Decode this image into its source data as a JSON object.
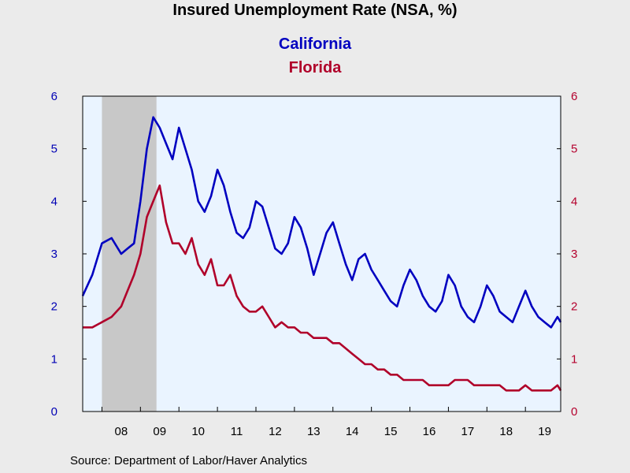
{
  "chart_data": {
    "type": "line",
    "title": "Insured Unemployment Rate (NSA, %)",
    "source": "Source:  Department of Labor/Haver Analytics",
    "x_axis": {
      "tick_labels": [
        "08",
        "09",
        "10",
        "11",
        "12",
        "13",
        "14",
        "15",
        "16",
        "17",
        "18",
        "19"
      ],
      "range": [
        "2007-07",
        "2019-12"
      ]
    },
    "y_left": {
      "range": [
        0,
        6
      ],
      "ticks": [
        "0",
        "1",
        "2",
        "3",
        "4",
        "5",
        "6"
      ],
      "color": "#0000b4"
    },
    "y_right": {
      "range": [
        0,
        6
      ],
      "ticks": [
        "0",
        "1",
        "2",
        "3",
        "4",
        "5",
        "6"
      ],
      "color": "#b4002d"
    },
    "recession_shading": {
      "start": "2008-01",
      "end": "2009-06",
      "color": "#c8c8c8"
    },
    "plot_background": "#eaf4ff",
    "grid": false,
    "series": [
      {
        "name": "California",
        "axis": "left",
        "color": "#0000c0",
        "x": [
          "2007-07",
          "2007-10",
          "2008-01",
          "2008-04",
          "2008-07",
          "2008-09",
          "2008-11",
          "2009-01",
          "2009-03",
          "2009-05",
          "2009-07",
          "2009-09",
          "2009-11",
          "2010-01",
          "2010-03",
          "2010-05",
          "2010-07",
          "2010-09",
          "2010-11",
          "2011-01",
          "2011-03",
          "2011-05",
          "2011-07",
          "2011-09",
          "2011-11",
          "2012-01",
          "2012-03",
          "2012-05",
          "2012-07",
          "2012-09",
          "2012-11",
          "2013-01",
          "2013-03",
          "2013-05",
          "2013-07",
          "2013-09",
          "2013-11",
          "2014-01",
          "2014-03",
          "2014-05",
          "2014-07",
          "2014-09",
          "2014-11",
          "2015-01",
          "2015-03",
          "2015-05",
          "2015-07",
          "2015-09",
          "2015-11",
          "2016-01",
          "2016-03",
          "2016-05",
          "2016-07",
          "2016-09",
          "2016-11",
          "2017-01",
          "2017-03",
          "2017-05",
          "2017-07",
          "2017-09",
          "2017-11",
          "2018-01",
          "2018-03",
          "2018-05",
          "2018-07",
          "2018-09",
          "2018-11",
          "2019-01",
          "2019-03",
          "2019-05",
          "2019-07",
          "2019-09",
          "2019-11",
          "2019-12"
        ],
        "values": [
          2.2,
          2.6,
          3.2,
          3.3,
          3.0,
          3.1,
          3.2,
          4.0,
          5.0,
          5.6,
          5.4,
          5.1,
          4.8,
          5.4,
          5.0,
          4.6,
          4.0,
          3.8,
          4.1,
          4.6,
          4.3,
          3.8,
          3.4,
          3.3,
          3.5,
          4.0,
          3.9,
          3.5,
          3.1,
          3.0,
          3.2,
          3.7,
          3.5,
          3.1,
          2.6,
          3.0,
          3.4,
          3.6,
          3.2,
          2.8,
          2.5,
          2.9,
          3.0,
          2.7,
          2.5,
          2.3,
          2.1,
          2.0,
          2.4,
          2.7,
          2.5,
          2.2,
          2.0,
          1.9,
          2.1,
          2.6,
          2.4,
          2.0,
          1.8,
          1.7,
          2.0,
          2.4,
          2.2,
          1.9,
          1.8,
          1.7,
          2.0,
          2.3,
          2.0,
          1.8,
          1.7,
          1.6,
          1.8,
          1.7
        ]
      },
      {
        "name": "Florida",
        "axis": "right",
        "color": "#b0002a",
        "x": [
          "2007-07",
          "2007-10",
          "2008-01",
          "2008-04",
          "2008-07",
          "2008-09",
          "2008-11",
          "2009-01",
          "2009-03",
          "2009-05",
          "2009-07",
          "2009-09",
          "2009-11",
          "2010-01",
          "2010-03",
          "2010-05",
          "2010-07",
          "2010-09",
          "2010-11",
          "2011-01",
          "2011-03",
          "2011-05",
          "2011-07",
          "2011-09",
          "2011-11",
          "2012-01",
          "2012-03",
          "2012-05",
          "2012-07",
          "2012-09",
          "2012-11",
          "2013-01",
          "2013-03",
          "2013-05",
          "2013-07",
          "2013-09",
          "2013-11",
          "2014-01",
          "2014-03",
          "2014-05",
          "2014-07",
          "2014-09",
          "2014-11",
          "2015-01",
          "2015-03",
          "2015-05",
          "2015-07",
          "2015-09",
          "2015-11",
          "2016-01",
          "2016-03",
          "2016-05",
          "2016-07",
          "2016-09",
          "2016-11",
          "2017-01",
          "2017-03",
          "2017-05",
          "2017-07",
          "2017-09",
          "2017-11",
          "2018-01",
          "2018-03",
          "2018-05",
          "2018-07",
          "2018-09",
          "2018-11",
          "2019-01",
          "2019-03",
          "2019-05",
          "2019-07",
          "2019-09",
          "2019-11",
          "2019-12"
        ],
        "values": [
          1.6,
          1.6,
          1.7,
          1.8,
          2.0,
          2.3,
          2.6,
          3.0,
          3.7,
          4.0,
          4.3,
          3.6,
          3.2,
          3.2,
          3.0,
          3.3,
          2.8,
          2.6,
          2.9,
          2.4,
          2.4,
          2.6,
          2.2,
          2.0,
          1.9,
          1.9,
          2.0,
          1.8,
          1.6,
          1.7,
          1.6,
          1.6,
          1.5,
          1.5,
          1.4,
          1.4,
          1.4,
          1.3,
          1.3,
          1.2,
          1.1,
          1.0,
          0.9,
          0.9,
          0.8,
          0.8,
          0.7,
          0.7,
          0.6,
          0.6,
          0.6,
          0.6,
          0.5,
          0.5,
          0.5,
          0.5,
          0.6,
          0.6,
          0.6,
          0.5,
          0.5,
          0.5,
          0.5,
          0.5,
          0.4,
          0.4,
          0.4,
          0.5,
          0.4,
          0.4,
          0.4,
          0.4,
          0.5,
          0.4
        ]
      }
    ]
  }
}
